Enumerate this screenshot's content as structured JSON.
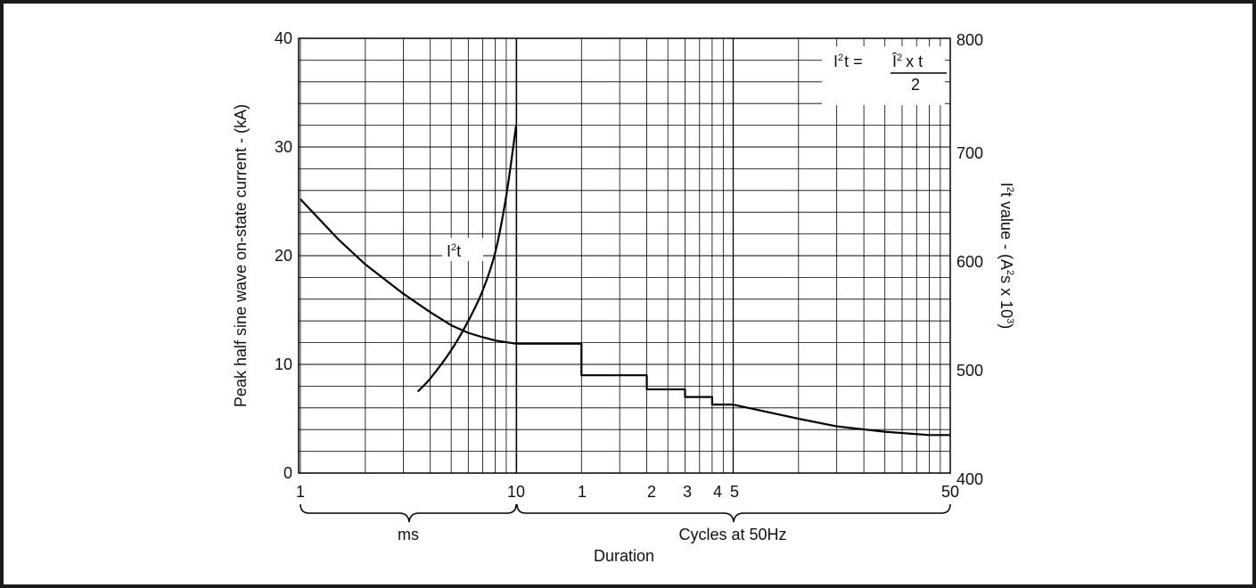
{
  "chart_data": {
    "type": "line",
    "ylabel_left": "Peak half sine wave on-state current - (kA)",
    "ylabel_right_main": "I",
    "ylabel_right_sup1": "2",
    "ylabel_right_mid": "t value - (A",
    "ylabel_right_sup2": "2",
    "ylabel_right_mid2": "s x 10",
    "ylabel_right_sup3": "3",
    "ylabel_right_end": ")",
    "xlabel": "Duration",
    "ylim_left": [
      0,
      40
    ],
    "ylim_right": [
      400,
      800
    ],
    "left_ticks": [
      "0",
      "10",
      "20",
      "30",
      "40"
    ],
    "right_ticks": [
      "400",
      "500",
      "600",
      "700",
      "800"
    ],
    "x_scale": "log",
    "x_ticks_ms": [
      "1",
      "10"
    ],
    "x_ticks_cycles": [
      "1",
      "2",
      "3",
      "4",
      "5",
      "50"
    ],
    "x_group_ms": "ms",
    "x_group_cycles": "Cycles at 50Hz",
    "grid": true,
    "series": [
      {
        "name": "I²t",
        "axis": "right",
        "x_ms": [
          3.5,
          4.0,
          5.0,
          6.0,
          7.0,
          8.0,
          9.0,
          10.0
        ],
        "y": [
          475,
          487,
          513,
          540,
          568,
          603,
          655,
          720
        ]
      },
      {
        "axis": "left",
        "x_ms": [
          1,
          1.5,
          2,
          3,
          4,
          5,
          6,
          7,
          8,
          10,
          20,
          20,
          40,
          40,
          60,
          60,
          80,
          80,
          100,
          100,
          200,
          300,
          500,
          800,
          1000
        ],
        "y": [
          25.2,
          21.5,
          19.2,
          16.5,
          14.8,
          13.6,
          12.9,
          12.5,
          12.2,
          11.9,
          11.9,
          9.0,
          9.0,
          7.7,
          7.7,
          7.0,
          7.0,
          6.3,
          6.3,
          6.3,
          5.0,
          4.3,
          3.8,
          3.5,
          3.5
        ]
      }
    ],
    "series_label_prefix": "I",
    "series_label_sup": "2",
    "series_label_suffix": "t",
    "formula": {
      "lhs_I": "I",
      "lhs_sup": "2",
      "lhs_rest": "t =",
      "num_I": "Î",
      "num_sup": "2",
      "num_rest": "x t",
      "denominator": "2"
    }
  }
}
